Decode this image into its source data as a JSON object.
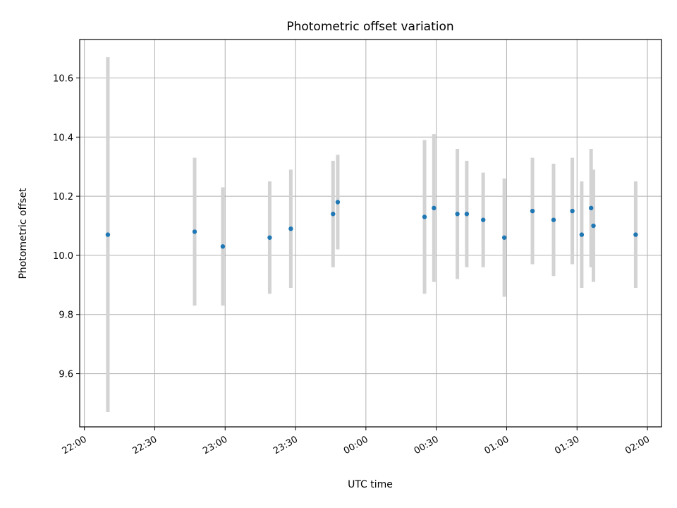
{
  "chart_data": {
    "type": "scatter",
    "title": "Photometric offset variation",
    "xlabel": "UTC time",
    "ylabel": "Photometric offset",
    "x_axis_kind": "time",
    "xlim": [
      "21:58",
      "02:06"
    ],
    "ylim": [
      9.42,
      10.73
    ],
    "x_ticks": [
      "22:00",
      "22:30",
      "23:00",
      "23:30",
      "00:00",
      "00:30",
      "01:00",
      "01:30",
      "02:00"
    ],
    "y_ticks": [
      "9.6",
      "9.8",
      "10.0",
      "10.2",
      "10.4",
      "10.6"
    ],
    "grid": true,
    "colors": {
      "point": "#1f77b4",
      "errorbar": "#d3d3d3"
    },
    "series": [
      {
        "points": [
          {
            "t": "22:10",
            "y": 10.07,
            "err": 0.6
          },
          {
            "t": "22:47",
            "y": 10.08,
            "err": 0.25
          },
          {
            "t": "22:59",
            "y": 10.03,
            "err": 0.2
          },
          {
            "t": "23:19",
            "y": 10.06,
            "err": 0.19
          },
          {
            "t": "23:28",
            "y": 10.09,
            "err": 0.2
          },
          {
            "t": "23:46",
            "y": 10.14,
            "err": 0.18
          },
          {
            "t": "23:48",
            "y": 10.18,
            "err": 0.16
          },
          {
            "t": "00:25",
            "y": 10.13,
            "err": 0.26
          },
          {
            "t": "00:29",
            "y": 10.16,
            "err": 0.25
          },
          {
            "t": "00:39",
            "y": 10.14,
            "err": 0.22
          },
          {
            "t": "00:43",
            "y": 10.14,
            "err": 0.18
          },
          {
            "t": "00:50",
            "y": 10.12,
            "err": 0.16
          },
          {
            "t": "00:59",
            "y": 10.06,
            "err": 0.2
          },
          {
            "t": "01:11",
            "y": 10.15,
            "err": 0.18
          },
          {
            "t": "01:20",
            "y": 10.12,
            "err": 0.19
          },
          {
            "t": "01:28",
            "y": 10.15,
            "err": 0.18
          },
          {
            "t": "01:32",
            "y": 10.07,
            "err": 0.18
          },
          {
            "t": "01:36",
            "y": 10.16,
            "err": 0.2
          },
          {
            "t": "01:37",
            "y": 10.1,
            "err": 0.19
          },
          {
            "t": "01:55",
            "y": 10.07,
            "err": 0.18
          }
        ]
      }
    ]
  }
}
